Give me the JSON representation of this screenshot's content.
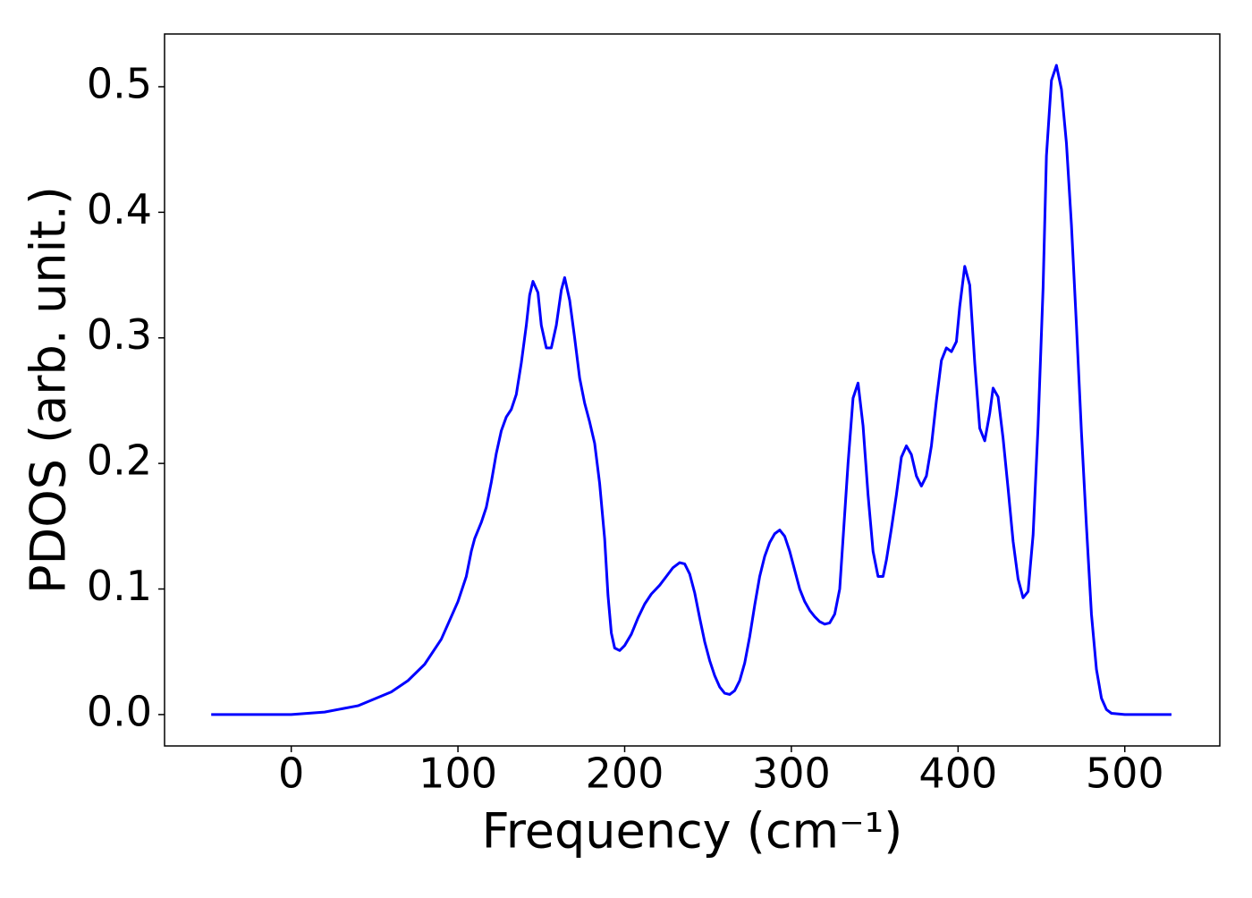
{
  "chart_data": {
    "type": "line",
    "xlabel": "Frequency (cm⁻¹)",
    "ylabel": "PDOS (arb. unit.)",
    "x": [
      -48,
      0,
      20,
      40,
      60,
      70,
      80,
      90,
      100,
      105,
      108,
      110,
      114,
      117,
      120,
      123,
      126,
      129,
      132,
      135,
      138,
      141,
      143,
      145,
      148,
      150,
      153,
      156,
      159,
      162,
      164,
      167,
      170,
      173,
      176,
      179,
      182,
      185,
      188,
      190,
      192,
      194,
      197,
      200,
      204,
      208,
      212,
      216,
      221,
      225,
      229,
      233,
      236,
      239,
      242,
      245,
      248,
      251,
      254,
      257,
      260,
      263,
      266,
      269,
      272,
      275,
      278,
      281,
      284,
      287,
      290,
      293,
      296,
      299,
      302,
      305,
      308,
      311,
      314,
      317,
      320,
      323,
      326,
      329,
      331,
      334,
      337,
      340,
      343,
      346,
      349,
      352,
      355,
      357,
      360,
      363,
      366,
      369,
      372,
      375,
      378,
      381,
      384,
      387,
      390,
      393,
      396,
      399,
      401,
      404,
      407,
      410,
      413,
      416,
      419,
      421,
      424,
      427,
      430,
      433,
      436,
      439,
      442,
      445,
      448,
      451,
      453,
      456,
      459,
      462,
      465,
      468,
      471,
      474,
      477,
      480,
      483,
      486,
      489,
      492,
      500,
      528
    ],
    "series": [
      {
        "name": "PDOS",
        "color": "#0000ff",
        "values": [
          0,
          0,
          0.002,
          0.007,
          0.018,
          0.027,
          0.04,
          0.06,
          0.09,
          0.11,
          0.13,
          0.14,
          0.153,
          0.165,
          0.185,
          0.208,
          0.226,
          0.237,
          0.243,
          0.255,
          0.28,
          0.31,
          0.334,
          0.345,
          0.336,
          0.31,
          0.292,
          0.292,
          0.31,
          0.338,
          0.348,
          0.33,
          0.3,
          0.268,
          0.248,
          0.233,
          0.216,
          0.184,
          0.14,
          0.095,
          0.065,
          0.053,
          0.051,
          0.055,
          0.064,
          0.077,
          0.088,
          0.096,
          0.103,
          0.11,
          0.117,
          0.121,
          0.12,
          0.112,
          0.097,
          0.077,
          0.058,
          0.043,
          0.031,
          0.022,
          0.017,
          0.016,
          0.019,
          0.027,
          0.041,
          0.062,
          0.087,
          0.11,
          0.126,
          0.137,
          0.144,
          0.147,
          0.142,
          0.13,
          0.115,
          0.1,
          0.09,
          0.083,
          0.078,
          0.074,
          0.072,
          0.073,
          0.08,
          0.1,
          0.14,
          0.2,
          0.252,
          0.264,
          0.23,
          0.175,
          0.13,
          0.11,
          0.11,
          0.123,
          0.148,
          0.175,
          0.205,
          0.214,
          0.207,
          0.19,
          0.182,
          0.19,
          0.214,
          0.25,
          0.282,
          0.292,
          0.289,
          0.297,
          0.325,
          0.357,
          0.342,
          0.28,
          0.228,
          0.218,
          0.24,
          0.26,
          0.253,
          0.22,
          0.18,
          0.138,
          0.108,
          0.093,
          0.098,
          0.143,
          0.23,
          0.34,
          0.445,
          0.505,
          0.517,
          0.498,
          0.455,
          0.39,
          0.31,
          0.225,
          0.15,
          0.08,
          0.036,
          0.013,
          0.004,
          0.001,
          0,
          0
        ]
      }
    ],
    "xlim": [
      -76,
      557
    ],
    "ylim": [
      -0.025,
      0.542
    ],
    "xticks": [
      0,
      100,
      200,
      300,
      400,
      500
    ],
    "yticks": [
      {
        "value": 0,
        "label": "0.0"
      },
      0.1,
      0.2,
      0.3,
      0.4,
      0.5
    ]
  }
}
